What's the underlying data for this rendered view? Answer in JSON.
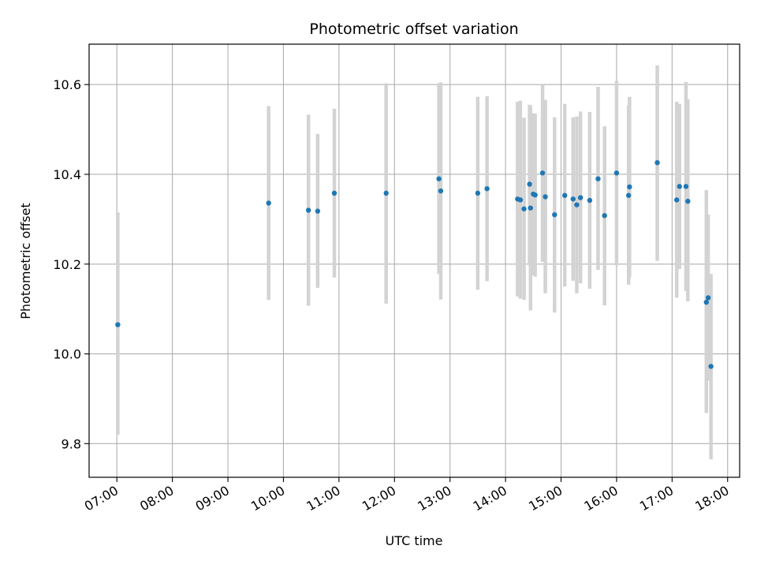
{
  "chart_data": {
    "type": "scatter",
    "title": "Photometric offset variation",
    "xlabel": "UTC time",
    "ylabel": "Photometric offset",
    "x_tick_labels": [
      "07:00",
      "08:00",
      "09:00",
      "10:00",
      "11:00",
      "12:00",
      "13:00",
      "14:00",
      "15:00",
      "16:00",
      "17:00",
      "18:00"
    ],
    "y_tick_labels": [
      "9.8",
      "10.0",
      "10.2",
      "10.4",
      "10.6"
    ],
    "y_ticks": [
      9.8,
      10.0,
      10.2,
      10.4,
      10.6
    ],
    "xlim": [
      "06:30",
      "18:13"
    ],
    "ylim": [
      9.725,
      10.69
    ],
    "grid": true,
    "marker_color": "#1f77b4",
    "errorbar_color": "#d3d3d3",
    "points": [
      {
        "t": "07:01",
        "y": 10.065,
        "lo": 9.82,
        "hi": 10.315
      },
      {
        "t": "09:44",
        "y": 10.336,
        "lo": 10.12,
        "hi": 10.552
      },
      {
        "t": "10:27",
        "y": 10.32,
        "lo": 10.107,
        "hi": 10.533
      },
      {
        "t": "10:37",
        "y": 10.318,
        "lo": 10.147,
        "hi": 10.49
      },
      {
        "t": "10:55",
        "y": 10.358,
        "lo": 10.17,
        "hi": 10.546
      },
      {
        "t": "11:51",
        "y": 10.358,
        "lo": 10.112,
        "hi": 10.603
      },
      {
        "t": "12:48",
        "y": 10.39,
        "lo": 10.178,
        "hi": 10.603
      },
      {
        "t": "12:50",
        "y": 10.363,
        "lo": 10.121,
        "hi": 10.605
      },
      {
        "t": "13:30",
        "y": 10.358,
        "lo": 10.143,
        "hi": 10.573
      },
      {
        "t": "13:40",
        "y": 10.368,
        "lo": 10.162,
        "hi": 10.574
      },
      {
        "t": "14:13",
        "y": 10.345,
        "lo": 10.128,
        "hi": 10.562
      },
      {
        "t": "14:16",
        "y": 10.343,
        "lo": 10.123,
        "hi": 10.564
      },
      {
        "t": "14:20",
        "y": 10.323,
        "lo": 10.12,
        "hi": 10.526
      },
      {
        "t": "14:26",
        "y": 10.378,
        "lo": 10.2,
        "hi": 10.555
      },
      {
        "t": "14:27",
        "y": 10.325,
        "lo": 10.097,
        "hi": 10.552
      },
      {
        "t": "14:30",
        "y": 10.356,
        "lo": 10.175,
        "hi": 10.536
      },
      {
        "t": "14:32",
        "y": 10.354,
        "lo": 10.172,
        "hi": 10.535
      },
      {
        "t": "14:40",
        "y": 10.403,
        "lo": 10.205,
        "hi": 10.6
      },
      {
        "t": "14:43",
        "y": 10.35,
        "lo": 10.135,
        "hi": 10.566
      },
      {
        "t": "14:53",
        "y": 10.31,
        "lo": 10.092,
        "hi": 10.527
      },
      {
        "t": "15:04",
        "y": 10.353,
        "lo": 10.15,
        "hi": 10.557
      },
      {
        "t": "15:13",
        "y": 10.345,
        "lo": 10.163,
        "hi": 10.527
      },
      {
        "t": "15:17",
        "y": 10.332,
        "lo": 10.135,
        "hi": 10.529
      },
      {
        "t": "15:21",
        "y": 10.348,
        "lo": 10.157,
        "hi": 10.54
      },
      {
        "t": "15:31",
        "y": 10.342,
        "lo": 10.145,
        "hi": 10.539
      },
      {
        "t": "15:40",
        "y": 10.39,
        "lo": 10.187,
        "hi": 10.595
      },
      {
        "t": "15:47",
        "y": 10.308,
        "lo": 10.108,
        "hi": 10.507
      },
      {
        "t": "16:00",
        "y": 10.403,
        "lo": 10.197,
        "hi": 10.608
      },
      {
        "t": "16:13",
        "y": 10.353,
        "lo": 10.154,
        "hi": 10.553
      },
      {
        "t": "16:14",
        "y": 10.372,
        "lo": 10.17,
        "hi": 10.573
      },
      {
        "t": "16:44",
        "y": 10.426,
        "lo": 10.207,
        "hi": 10.643
      },
      {
        "t": "17:05",
        "y": 10.343,
        "lo": 10.125,
        "hi": 10.562
      },
      {
        "t": "17:08",
        "y": 10.373,
        "lo": 10.189,
        "hi": 10.557
      },
      {
        "t": "17:15",
        "y": 10.373,
        "lo": 10.14,
        "hi": 10.606
      },
      {
        "t": "17:17",
        "y": 10.34,
        "lo": 10.117,
        "hi": 10.567
      },
      {
        "t": "17:37",
        "y": 10.115,
        "lo": 9.868,
        "hi": 10.365
      },
      {
        "t": "17:39",
        "y": 10.125,
        "lo": 9.94,
        "hi": 10.31
      },
      {
        "t": "17:42",
        "y": 9.972,
        "lo": 9.765,
        "hi": 10.178
      }
    ]
  }
}
